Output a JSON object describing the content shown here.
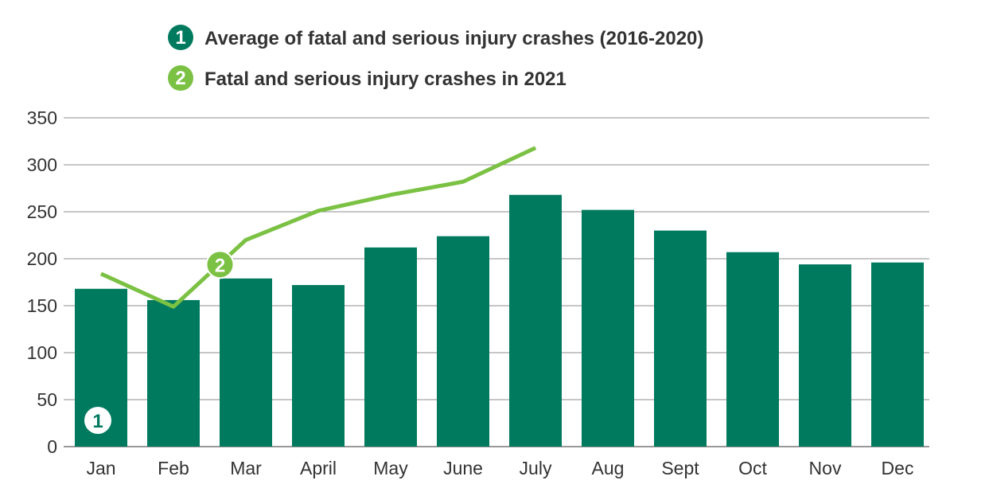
{
  "legend": {
    "items": [
      {
        "number": "1",
        "label": "Average of fatal and serious injury crashes (2016-2020)",
        "color": "#007A5E"
      },
      {
        "number": "2",
        "label": "Fatal and serious injury crashes in 2021",
        "color": "#7BC143"
      }
    ]
  },
  "chart_data": {
    "type": "bar",
    "categories": [
      "Jan",
      "Feb",
      "Mar",
      "April",
      "May",
      "June",
      "July",
      "Aug",
      "Sept",
      "Oct",
      "Nov",
      "Dec"
    ],
    "series": [
      {
        "name": "Average of fatal and serious injury crashes (2016-2020)",
        "type": "bar",
        "marker": "1",
        "color": "#007A5E",
        "values": [
          168,
          156,
          179,
          172,
          212,
          224,
          268,
          252,
          230,
          207,
          194,
          196
        ]
      },
      {
        "name": "Fatal and serious injury crashes in 2021",
        "type": "line",
        "marker": "2",
        "color": "#7BC143",
        "values": [
          184,
          149,
          220,
          251,
          268,
          282,
          318,
          null,
          null,
          null,
          null,
          null
        ]
      }
    ],
    "yticks": [
      0,
      50,
      100,
      150,
      200,
      250,
      300,
      350
    ],
    "ylim": [
      0,
      350
    ],
    "grid": true,
    "legend_position": "top"
  }
}
